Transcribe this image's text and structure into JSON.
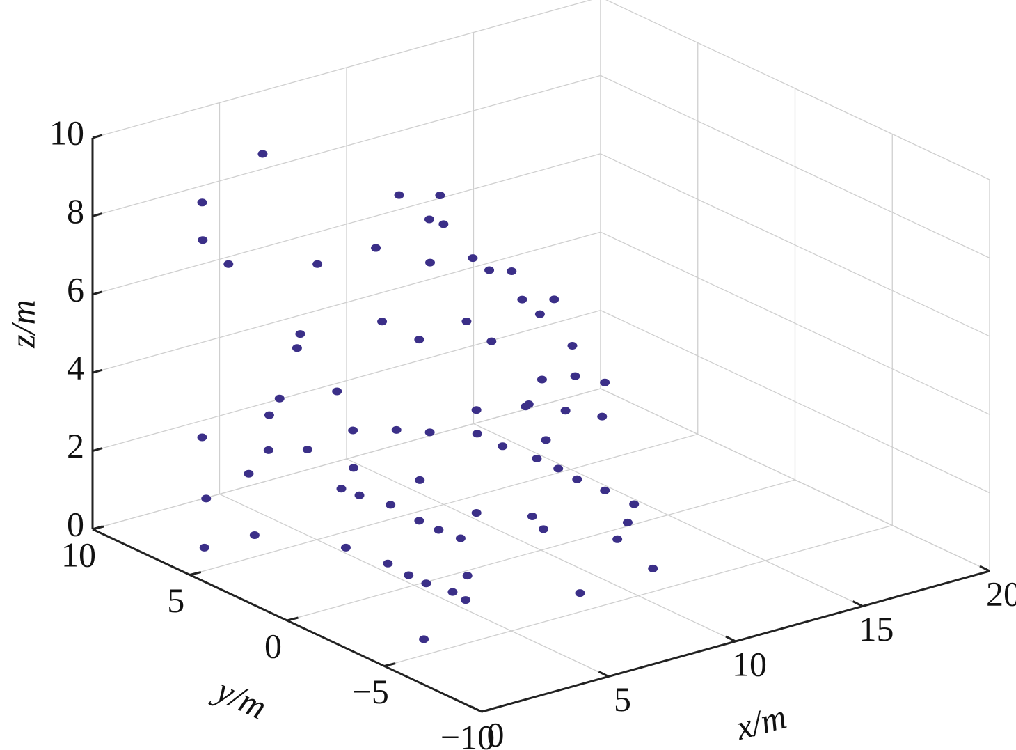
{
  "chart_data": {
    "type": "scatter3d",
    "xlabel": "x/m",
    "ylabel": "y/m",
    "zlabel": "z/m",
    "xlim": [
      0,
      20
    ],
    "ylim": [
      -10,
      10
    ],
    "zlim": [
      0,
      10
    ],
    "xticks": [
      0,
      5,
      10,
      15,
      20
    ],
    "yticks": [
      {
        "value": -10,
        "label": "−10"
      },
      {
        "value": -5,
        "label": "−5"
      },
      0,
      5,
      10
    ],
    "zticks": [
      0,
      2,
      4,
      6,
      8,
      10
    ],
    "grid": true,
    "color": "#3b2f88",
    "x": [
      4.4,
      2.4,
      2.5,
      2.9,
      5.1,
      7.4,
      9.7,
      9.2,
      8.7,
      9.3,
      9.0,
      10.3,
      11.1,
      11.6,
      11.4,
      12.2,
      12.1,
      9.9,
      7.8,
      8.8,
      10.5,
      13.3,
      4.3,
      4.5,
      6.1,
      4.3,
      4.2,
      11.8,
      11.0,
      13.2,
      12.8,
      2.4,
      4.4,
      5.4,
      7.6,
      8.3,
      9.4,
      10.4,
      11.8,
      13.4,
      12.8,
      3.7,
      3.4,
      1.8,
      3.7,
      5.3,
      5.2,
      5.3,
      6.6,
      7.6,
      7.5,
      7.5,
      7.6,
      8.3,
      10.6,
      10.6,
      10.5,
      10.6,
      10.6,
      10.5,
      10.4,
      11.8,
      9.1,
      9.5,
      8.7,
      5.5,
      5.4,
      5.4,
      5.6,
      5.5,
      5.8,
      2.4,
      11.2,
      6.5,
      6.6,
      9.6
    ],
    "y": [
      7.0,
      7.5,
      7.6,
      6.8,
      5.1,
      5.1,
      4.8,
      4.7,
      5.6,
      4.1,
      4.4,
      3.9,
      4.1,
      3.6,
      2.8,
      2.2,
      2.8,
      3.7,
      5.3,
      4.7,
      3.2,
      2.7,
      5.1,
      5.2,
      5.4,
      6.0,
      6.4,
      2.3,
      2.1,
      0.9,
      1.9,
      7.5,
      6.7,
      6.0,
      4.3,
      3.5,
      2.5,
      2.5,
      2.1,
      1.3,
      2.4,
      6.8,
      8.6,
      6.6,
      6.5,
      3.9,
      4.0,
      3.2,
      3.3,
      3.1,
      3.0,
      2.0,
      1.0,
      1.1,
      1.0,
      -0.1,
      -1.2,
      -2.5,
      -4.0,
      -3.8,
      -3.4,
      -3.4,
      -1.3,
      -0.2,
      -3.7,
      2.0,
      0.8,
      -0.1,
      -1.2,
      -2.0,
      -1.7,
      -3.9,
      2.2,
      5.1,
      5.2,
      2.8
    ],
    "z": [
      9.5,
      8.5,
      7.5,
      7,
      7,
      7,
      8,
      7.5,
      8,
      7.5,
      6.5,
      6.5,
      6,
      6,
      5.5,
      5.5,
      5,
      5,
      5,
      4.5,
      4.5,
      4,
      5,
      5.3,
      3.5,
      3.5,
      3,
      3.5,
      3,
      3.5,
      3.5,
      2.5,
      2,
      2,
      2.5,
      2.5,
      2.5,
      2,
      2,
      2.5,
      2.5,
      1.5,
      0.5,
      0,
      0,
      0,
      1.5,
      1.5,
      1,
      1.5,
      0.5,
      0.5,
      0.5,
      1,
      2,
      2,
      2,
      2,
      2,
      1.5,
      1,
      0,
      1,
      1,
      0,
      0,
      0,
      0,
      0,
      0,
      0.5,
      0,
      3,
      2.5,
      1.5,
      3
    ]
  }
}
